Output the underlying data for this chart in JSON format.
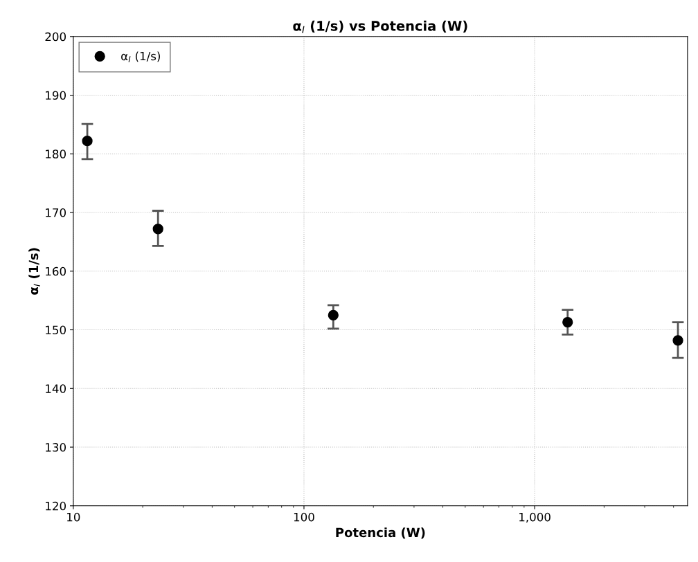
{
  "chart_data": {
    "type": "scatter",
    "title": "α$_{I}$ (1/s) vs Potencia (W)",
    "xlabel": "Potencia (W)",
    "ylabel": "α$_{I}$ (1/s)",
    "x": [
      11.5,
      23.3,
      134,
      1390,
      4180
    ],
    "series": [
      {
        "name": "α$_{I}$ (1/s)",
        "color": "#000000",
        "values": [
          182.2,
          167.2,
          152.5,
          151.3,
          148.2
        ],
        "errors": [
          [
            179.1,
            185.1
          ],
          [
            164.3,
            170.3
          ],
          [
            150.2,
            154.2
          ],
          [
            149.2,
            153.4
          ],
          [
            145.2,
            151.3
          ]
        ]
      }
    ],
    "log": "x",
    "xlim": [
      10,
      4600
    ],
    "xticks": [
      10,
      100,
      {
        "value": 1000,
        "label": "1,000"
      }
    ],
    "ylim": [
      120,
      200
    ],
    "yticks": [
      120,
      130,
      140,
      150,
      160,
      170,
      180,
      190,
      200
    ],
    "grid": true,
    "legend": "top left",
    "marker": "circle"
  }
}
